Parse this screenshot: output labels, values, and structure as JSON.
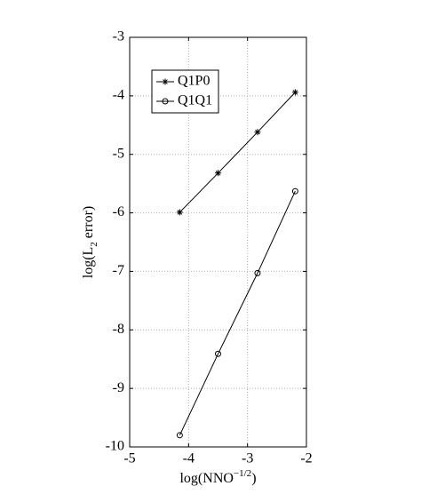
{
  "chart_data": {
    "type": "line",
    "xlabel": [
      "log(NNO",
      "−1/2",
      ")"
    ],
    "ylabel": [
      "log(L",
      "2",
      " error)"
    ],
    "xlim": [
      -5,
      -2
    ],
    "xticks": [
      -5,
      -4,
      -3,
      -2
    ],
    "ylim": [
      -10,
      -3
    ],
    "yticks": [
      -10,
      -9,
      -8,
      -7,
      -6,
      -5,
      -4,
      -3
    ],
    "grid": true,
    "legend": "top-left",
    "series": [
      {
        "name": "Q1P0",
        "color": "#000000",
        "marker": "asterisk",
        "x": [
          -4.15,
          -3.5,
          -2.83,
          -2.19
        ],
        "values": [
          -5.99,
          -5.32,
          -4.62,
          -3.94
        ]
      },
      {
        "name": "Q1Q1",
        "color": "#000000",
        "marker": "circle",
        "x": [
          -4.15,
          -3.5,
          -2.83,
          -2.19
        ],
        "values": [
          -9.8,
          -8.41,
          -7.03,
          -5.63
        ]
      }
    ]
  }
}
